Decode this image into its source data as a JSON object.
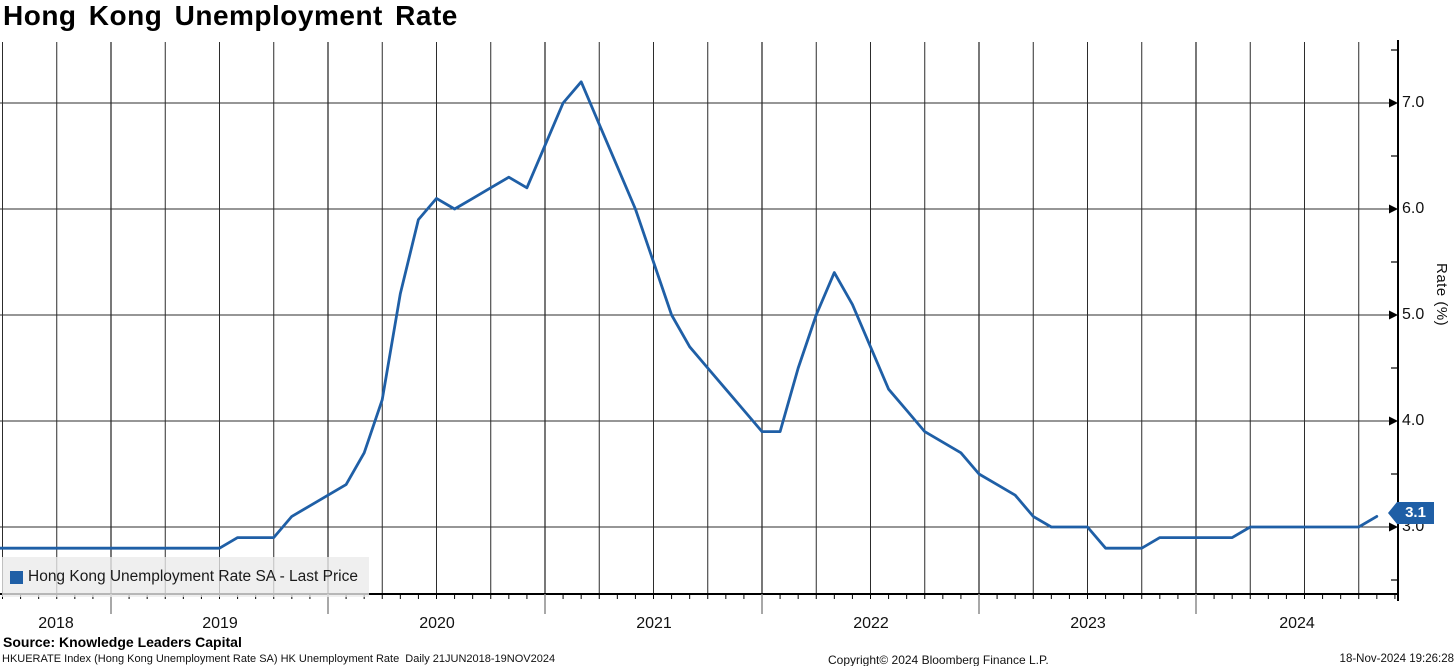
{
  "title": "Hong Kong Unemployment Rate",
  "legend": {
    "label": "Hong Kong Unemployment Rate SA - Last Price",
    "marker_color": "#1f5fa6"
  },
  "last_price_badge": {
    "value": "3.1",
    "color": "#1f5fa6"
  },
  "y_axis": {
    "label": "Rate (%)",
    "ticks": [
      "7.0",
      "6.0",
      "5.0",
      "4.0",
      "3.0"
    ],
    "minor_tick_step": 0.5,
    "range": [
      2.5,
      7.5
    ]
  },
  "x_axis": {
    "years": [
      "2018",
      "2019",
      "2020",
      "2021",
      "2022",
      "2023",
      "2024"
    ]
  },
  "footer": {
    "source": "Source: Knowledge Leaders Capital",
    "meta": "HKUERATE Index (Hong Kong Unemployment Rate SA) HK Unemployment Rate  Daily 21JUN2018-19NOV2024",
    "copyright": "Copyright© 2024 Bloomberg Finance L.P.",
    "timestamp": "18-Nov-2024 19:26:28"
  },
  "chart_data": {
    "type": "line",
    "title": "Hong Kong Unemployment Rate",
    "ylabel": "Rate (%)",
    "xlabel": "",
    "ylim": [
      2.5,
      7.5
    ],
    "y_major_gridlines": [
      3.0,
      4.0,
      5.0,
      6.0,
      7.0
    ],
    "x_range": [
      "2018-06-21",
      "2024-11-19"
    ],
    "grid": true,
    "legend_position": "bottom-left",
    "line_color": "#1f5fa6",
    "last_value_marker": 3.1,
    "series": [
      {
        "name": "Hong Kong Unemployment Rate SA - Last Price",
        "months": [
          "2018-06",
          "2018-07",
          "2018-08",
          "2018-09",
          "2018-10",
          "2018-11",
          "2018-12",
          "2019-01",
          "2019-02",
          "2019-03",
          "2019-04",
          "2019-05",
          "2019-06",
          "2019-07",
          "2019-08",
          "2019-09",
          "2019-10",
          "2019-11",
          "2019-12",
          "2020-01",
          "2020-02",
          "2020-03",
          "2020-04",
          "2020-05",
          "2020-06",
          "2020-07",
          "2020-08",
          "2020-09",
          "2020-10",
          "2020-11",
          "2020-12",
          "2021-01",
          "2021-02",
          "2021-03",
          "2021-04",
          "2021-05",
          "2021-06",
          "2021-07",
          "2021-08",
          "2021-09",
          "2021-10",
          "2021-11",
          "2021-12",
          "2022-01",
          "2022-02",
          "2022-03",
          "2022-04",
          "2022-05",
          "2022-06",
          "2022-07",
          "2022-08",
          "2022-09",
          "2022-10",
          "2022-11",
          "2022-12",
          "2023-01",
          "2023-02",
          "2023-03",
          "2023-04",
          "2023-05",
          "2023-06",
          "2023-07",
          "2023-08",
          "2023-09",
          "2023-10",
          "2023-11",
          "2023-12",
          "2024-01",
          "2024-02",
          "2024-03",
          "2024-04",
          "2024-05",
          "2024-06",
          "2024-07",
          "2024-08",
          "2024-09",
          "2024-10"
        ],
        "values": [
          2.8,
          2.8,
          2.8,
          2.8,
          2.8,
          2.8,
          2.8,
          2.8,
          2.8,
          2.8,
          2.8,
          2.8,
          2.8,
          2.9,
          2.9,
          2.9,
          3.1,
          3.2,
          3.3,
          3.4,
          3.7,
          4.2,
          5.2,
          5.9,
          6.1,
          6.0,
          6.1,
          6.2,
          6.3,
          6.2,
          6.6,
          7.0,
          7.2,
          6.8,
          6.4,
          6.0,
          5.5,
          5.0,
          4.7,
          4.5,
          4.3,
          4.1,
          3.9,
          3.9,
          4.5,
          5.0,
          5.4,
          5.1,
          4.7,
          4.3,
          4.1,
          3.9,
          3.8,
          3.7,
          3.5,
          3.4,
          3.3,
          3.1,
          3.0,
          3.0,
          3.0,
          2.8,
          2.8,
          2.8,
          2.9,
          2.9,
          2.9,
          2.9,
          2.9,
          3.0,
          3.0,
          3.0,
          3.0,
          3.0,
          3.0,
          3.0,
          3.1
        ]
      }
    ]
  }
}
